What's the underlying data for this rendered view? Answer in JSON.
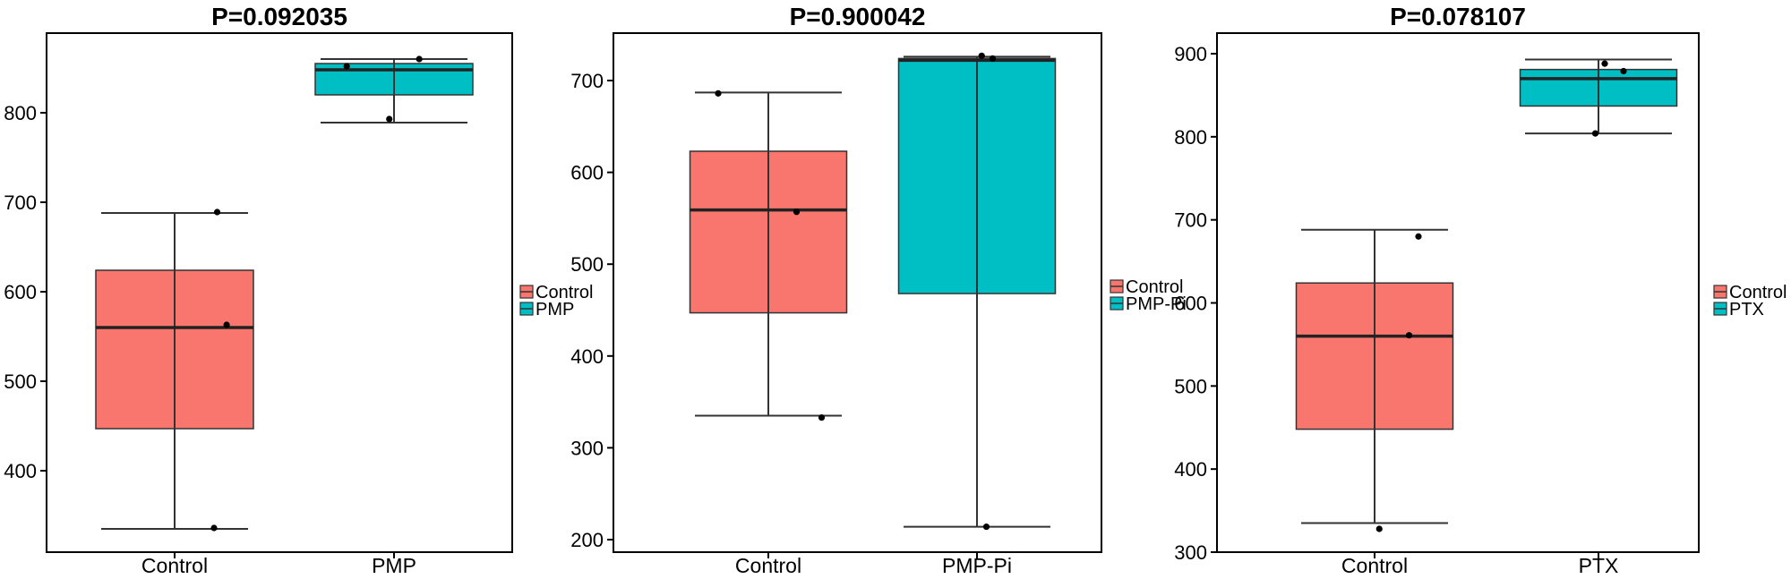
{
  "chart_data": [
    {
      "type": "box",
      "title": "P=0.092035",
      "categories": [
        "Control",
        "PMP"
      ],
      "yticks": [
        400,
        500,
        600,
        700,
        800
      ],
      "ylim": [
        300,
        880
      ],
      "legend": {
        "position": "right",
        "entries": [
          "Control",
          "PMP"
        ]
      },
      "boxes": [
        {
          "name": "Control",
          "min": 335,
          "q1": 447,
          "median": 560,
          "q3": 624,
          "max": 688,
          "color": "#F8766D",
          "points": [
            {
              "offset": 0.25,
              "y": 336
            },
            {
              "offset": 0.33,
              "y": 563
            },
            {
              "offset": 0.27,
              "y": 689
            }
          ]
        },
        {
          "name": "PMP",
          "min": 789,
          "q1": 820,
          "median": 848,
          "q3": 855,
          "max": 860,
          "color": "#00BFC4",
          "points": [
            {
              "offset": -0.3,
              "y": 852
            },
            {
              "offset": 0.16,
              "y": 860
            },
            {
              "offset": -0.03,
              "y": 793
            }
          ]
        }
      ]
    },
    {
      "type": "box",
      "title": "P=0.900042",
      "categories": [
        "Control",
        "PMP-Pi"
      ],
      "yticks": [
        200,
        300,
        400,
        500,
        600,
        700
      ],
      "ylim": [
        190,
        752
      ],
      "legend": {
        "position": "right",
        "entries": [
          "Control",
          "PMP-Pi"
        ]
      },
      "boxes": [
        {
          "name": "Control",
          "min": 335,
          "q1": 447,
          "median": 559,
          "q3": 623,
          "max": 687,
          "color": "#F8766D",
          "points": [
            {
              "offset": -0.32,
              "y": 686
            },
            {
              "offset": 0.18,
              "y": 557
            },
            {
              "offset": 0.34,
              "y": 333
            }
          ]
        },
        {
          "name": "PMP-Pi",
          "min": 214,
          "q1": 468,
          "median": 722,
          "q3": 724,
          "max": 726,
          "color": "#00BFC4",
          "points": [
            {
              "offset": 0.03,
              "y": 727
            },
            {
              "offset": 0.1,
              "y": 724
            },
            {
              "offset": 0.06,
              "y": 214
            }
          ]
        }
      ]
    },
    {
      "type": "box",
      "title": "P=0.078107",
      "categories": [
        "Control",
        "PTX"
      ],
      "yticks": [
        300,
        400,
        500,
        600,
        700,
        800,
        900
      ],
      "ylim": [
        300,
        922
      ],
      "legend": {
        "position": "right",
        "entries": [
          "Control",
          "PTX"
        ]
      },
      "boxes": [
        {
          "name": "Control",
          "min": 335,
          "q1": 448,
          "median": 560,
          "q3": 624,
          "max": 688,
          "color": "#F8766D",
          "points": [
            {
              "offset": 0.03,
              "y": 328
            },
            {
              "offset": 0.28,
              "y": 680
            },
            {
              "offset": 0.22,
              "y": 561
            }
          ]
        },
        {
          "name": "PTX",
          "min": 804,
          "q1": 837,
          "median": 870,
          "q3": 881,
          "max": 893,
          "color": "#00BFC4",
          "points": [
            {
              "offset": 0.04,
              "y": 888
            },
            {
              "offset": 0.16,
              "y": 879
            },
            {
              "offset": -0.02,
              "y": 804
            }
          ]
        }
      ]
    }
  ]
}
